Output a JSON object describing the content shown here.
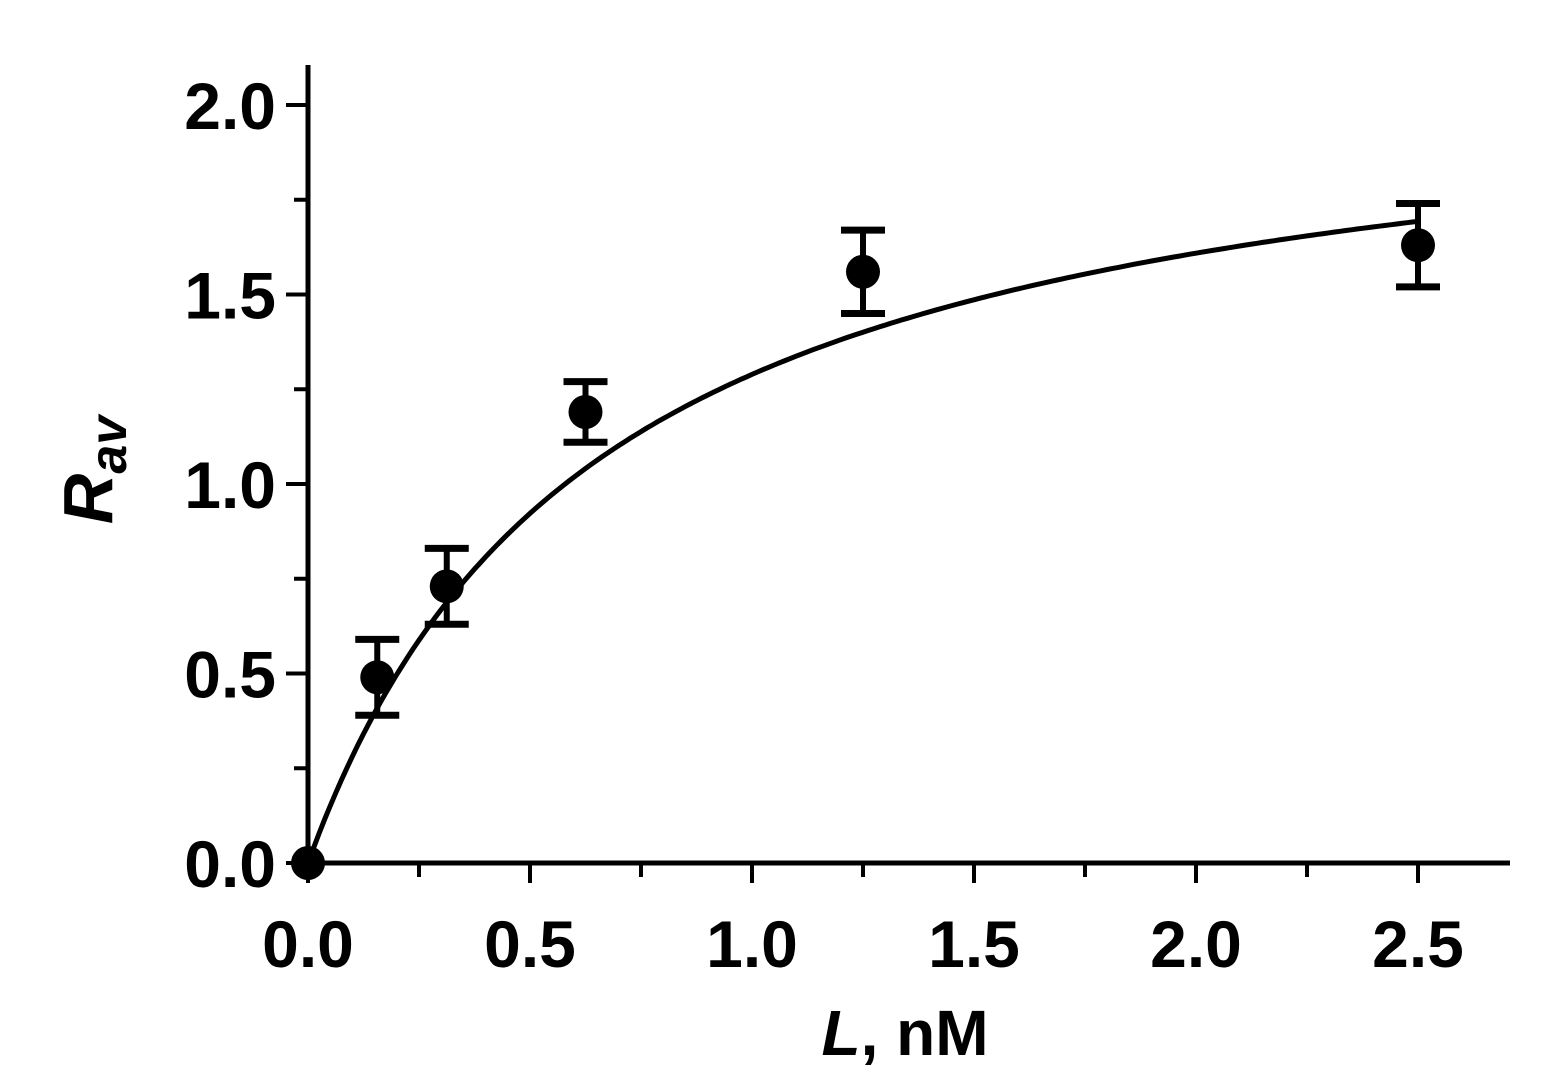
{
  "chart_data": {
    "type": "scatter",
    "xlabel": {
      "var": "L",
      "rest": ", nM"
    },
    "ylabel": {
      "main": "R",
      "sub": "av"
    },
    "xlim": [
      0,
      2.7
    ],
    "ylim": [
      0,
      2.1
    ],
    "x_ticks_major": [
      "0.0",
      "0.5",
      "1.0",
      "1.5",
      "2.0",
      "2.5"
    ],
    "y_ticks_major": [
      "0.0",
      "0.5",
      "1.0",
      "1.5",
      "2.0"
    ],
    "x_ticks_minor_step": 0.25,
    "y_ticks_minor_step": 0.25,
    "grid": false,
    "legend": "none",
    "series": [
      {
        "marker": "circle",
        "x": [
          0.0,
          0.156,
          0.3125,
          0.625,
          1.25,
          2.5
        ],
        "y": [
          0.0,
          0.49,
          0.73,
          1.19,
          1.56,
          1.63
        ],
        "err": [
          0.0,
          0.1,
          0.1,
          0.08,
          0.11,
          0.11
        ]
      }
    ],
    "fit_curve": {
      "model": "hyperbolic",
      "Bmax": 2.14,
      "Kd": 0.66
    }
  },
  "colors": {
    "ink": "#000000",
    "background": "#ffffff"
  }
}
